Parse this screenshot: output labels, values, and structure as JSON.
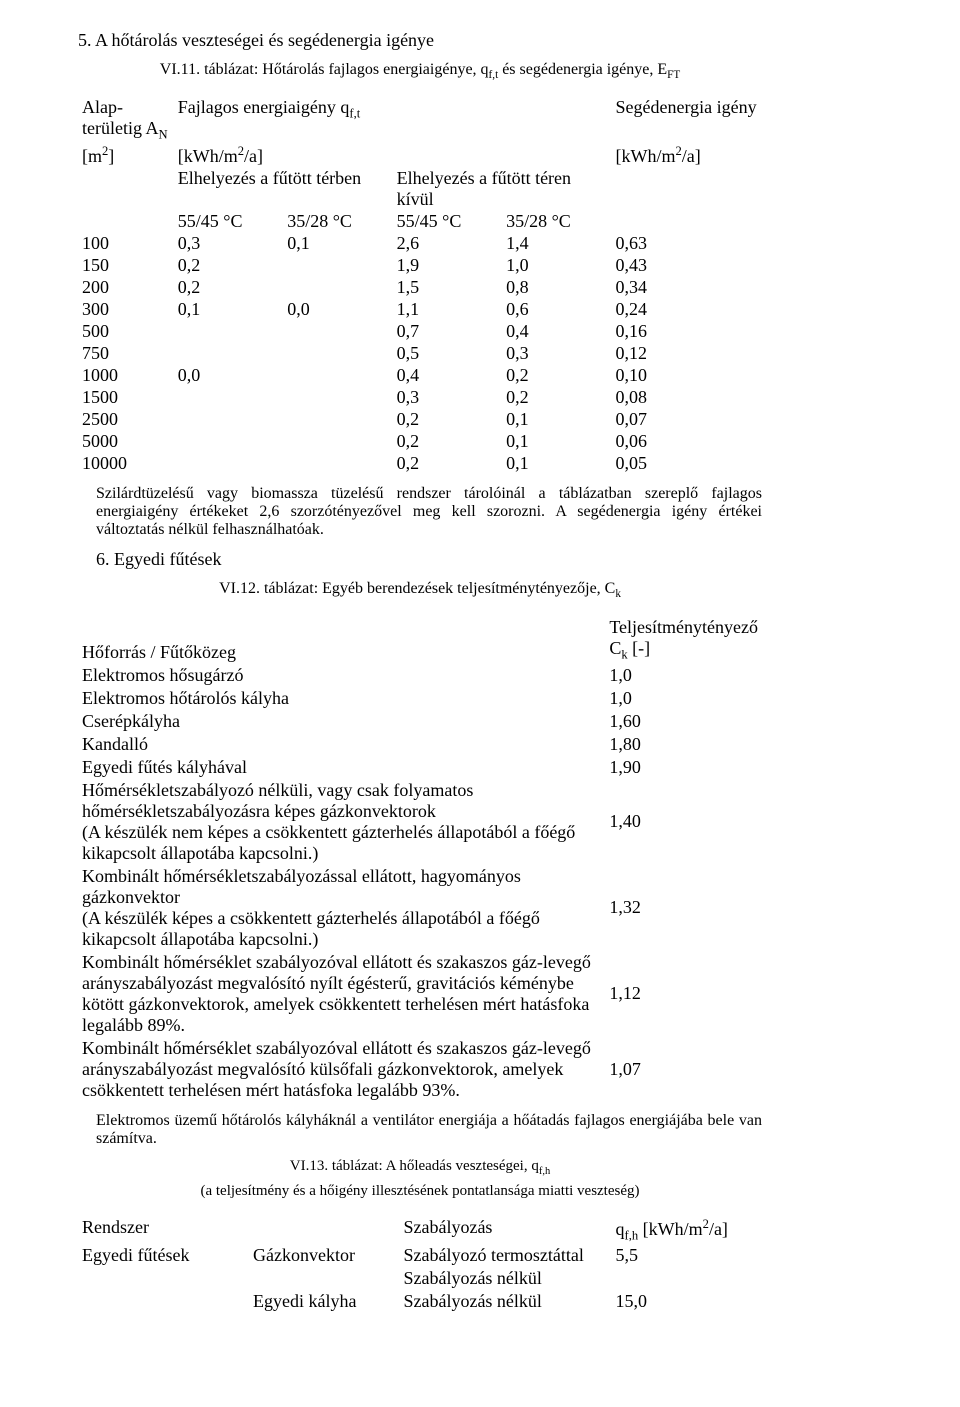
{
  "section5": {
    "title": "5. A hőtárolás veszteségei és segédenergia igénye",
    "caption": "VI.11. táblázat: Hőtárolás fajlagos energiaigénye, q",
    "caption_sub1": "f,t",
    "caption_mid": " és segédenergia igénye, E",
    "caption_sub2": "FT",
    "header": {
      "col1_a": "Alap-területig A",
      "col1_a_sub": "N",
      "col1_b": "[m",
      "col1_b_sup": "2",
      "col1_b_close": "]",
      "col2_a": "Fajlagos energiaigény q",
      "col2_a_sub": "f,t",
      "col2_b": "[kWh/m",
      "col2_b_sup": "2",
      "col2_b_close": "/a]",
      "groupA": "Elhelyezés a fűtött térben",
      "groupB": "Elhelyezés a fűtött téren kívül",
      "t1": "55/45 °C",
      "t2": "35/28 °C",
      "t3": "55/45 °C",
      "t4": "35/28 °C",
      "col5_a": "Segédenergia igény",
      "col5_b": "[kWh/m",
      "col5_b_sup": "2",
      "col5_b_close": "/a]"
    },
    "rows": [
      {
        "c0": "100",
        "c1": "0,3",
        "c2": "0,1",
        "c3": "2,6",
        "c4": "1,4",
        "c5": "0,63"
      },
      {
        "c0": "150",
        "c1": "0,2",
        "c2": "",
        "c3": "1,9",
        "c4": "1,0",
        "c5": "0,43"
      },
      {
        "c0": "200",
        "c1": "0,2",
        "c2": "",
        "c3": "1,5",
        "c4": "0,8",
        "c5": "0,34"
      },
      {
        "c0": "300",
        "c1": "0,1",
        "c2": "0,0",
        "c3": "1,1",
        "c4": "0,6",
        "c5": "0,24"
      },
      {
        "c0": "500",
        "c1": "",
        "c2": "",
        "c3": "0,7",
        "c4": "0,4",
        "c5": "0,16"
      },
      {
        "c0": "750",
        "c1": "",
        "c2": "",
        "c3": "0,5",
        "c4": "0,3",
        "c5": "0,12"
      },
      {
        "c0": "1000",
        "c1": "0,0",
        "c2": "",
        "c3": "0,4",
        "c4": "0,2",
        "c5": "0,10"
      },
      {
        "c0": "1500",
        "c1": "",
        "c2": "",
        "c3": "0,3",
        "c4": "0,2",
        "c5": "0,08"
      },
      {
        "c0": "2500",
        "c1": "",
        "c2": "",
        "c3": "0,2",
        "c4": "0,1",
        "c5": "0,07"
      },
      {
        "c0": "5000",
        "c1": "",
        "c2": "",
        "c3": "0,2",
        "c4": "0,1",
        "c5": "0,06"
      },
      {
        "c0": "10000",
        "c1": "",
        "c2": "",
        "c3": "0,2",
        "c4": "0,1",
        "c5": "0,05"
      }
    ],
    "note": "Szilárdtüzelésű vagy biomassza tüzelésű rendszer tárolóinál a táblázatban szereplő fajlagos energiaigény értékeket 2,6 szorzótényezővel meg kell szorozni. A segédenergia igény értékei változtatás nélkül felhasználhatóak."
  },
  "section6": {
    "title": "6. Egyedi fűtések",
    "caption": "VI.12. táblázat: Egyéb berendezések teljesítménytényezője, C",
    "caption_sub": "k",
    "header_left": "Hőforrás / Fűtőközeg",
    "header_right_a": "Teljesítménytényező",
    "header_right_b": "C",
    "header_right_b_sub": "k",
    "header_right_b_close": " [-]",
    "rows": [
      {
        "label": "Elektromos hősugárzó",
        "val": "1,0"
      },
      {
        "label": "Elektromos hőtárolós kályha",
        "val": "1,0"
      },
      {
        "label": "Cserépkályha",
        "val": "1,60"
      },
      {
        "label": "Kandalló",
        "val": "1,80"
      },
      {
        "label": "Egyedi fűtés kályhával",
        "val": "1,90"
      },
      {
        "label": "Hőmérsékletszabályozó nélküli, vagy csak folyamatos hőmérsékletszabályozásra képes gázkonvektorok\n(A készülék nem képes a csökkentett gázterhelés állapotából a főégő kikapcsolt állapotába kapcsolni.)",
        "val": "1,40"
      },
      {
        "label": "Kombinált hőmérsékletszabályozással ellátott, hagyományos gázkonvektor\n(A készülék képes a csökkentett gázterhelés állapotából a főégő kikapcsolt állapotába kapcsolni.)",
        "val": "1,32"
      },
      {
        "label": "Kombinált hőmérséklet szabályozóval ellátott és szakaszos gáz-levegő arányszabályozást megvalósító nyílt égésterű, gravitációs kéménybe kötött gázkonvektorok, amelyek csökkentett terhelésen mért hatásfoka legalább 89%.",
        "val": "1,12"
      },
      {
        "label": "Kombinált hőmérséklet szabályozóval ellátott és szakaszos gáz-levegő arányszabályozást megvalósító külsőfali gázkonvektorok, amelyek csökkentett terhelésen mért hatásfoka legalább 93%.",
        "val": "1,07"
      }
    ],
    "note": "Elektromos üzemű hőtárolós kályháknál a ventilátor energiája a hőátadás fajlagos energiájába bele van számítva."
  },
  "section13": {
    "caption": "VI.13. táblázat: A hőleadás veszteségei, q",
    "caption_sub": "f,h",
    "caption2": "(a teljesítmény és a hőigény illesztésének pontatlansága miatti veszteség)",
    "header": {
      "c0": "Rendszer",
      "c1": "",
      "c2": "Szabályozás",
      "c3_a": "q",
      "c3_a_sub": "f,h",
      "c3_b": " [kWh/m",
      "c3_b_sup": "2",
      "c3_b_close": "/a]"
    },
    "rows": [
      {
        "c0": "Egyedi fűtések",
        "c1": "Gázkonvektor",
        "c2": "Szabályozó termosztáttal",
        "c3": "5,5"
      },
      {
        "c0": "",
        "c1": "",
        "c2": "Szabályozás nélkül",
        "c3": ""
      },
      {
        "c0": "",
        "c1": "Egyedi kályha",
        "c2": "Szabályozás nélkül",
        "c3": "15,0"
      }
    ]
  }
}
